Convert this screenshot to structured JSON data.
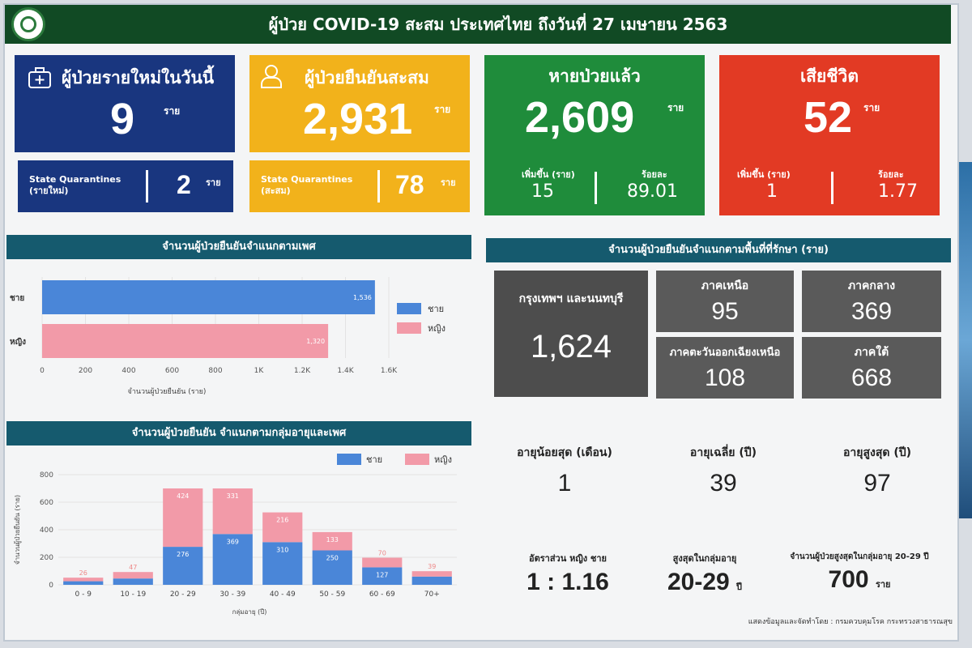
{
  "header": {
    "title": "ผู้ป่วย COVID-19 สะสม  ประเทศไทย ถึงวันที่ 27 เมษายน 2563"
  },
  "cards": {
    "new_cases": {
      "label": "ผู้ป่วยรายใหม่ในวันนี้",
      "value": "9",
      "unit": "ราย",
      "color": "#19367f",
      "sub": {
        "label_line1": "State Quarantines",
        "label_line2": "(รายใหม่)",
        "value": "2",
        "unit": "ราย"
      }
    },
    "confirmed": {
      "label": "ผู้ป่วยยืนยันสะสม",
      "value": "2,931",
      "unit": "ราย",
      "color": "#f2b21b",
      "sub": {
        "label_line1": "State Quarantines",
        "label_line2": "(สะสม)",
        "value": "78",
        "unit": "ราย"
      }
    },
    "recovered": {
      "label": "หายป่วยแล้ว",
      "value": "2,609",
      "unit": "ราย",
      "color": "#1f8c3b",
      "inc_label": "เพิ่มขึ้น (ราย)",
      "inc_value": "15",
      "pct_label": "ร้อยละ",
      "pct_value": "89.01"
    },
    "deaths": {
      "label": "เสียชีวิต",
      "value": "52",
      "unit": "ราย",
      "color": "#e23a24",
      "inc_label": "เพิ่มขึ้น (ราย)",
      "inc_value": "1",
      "pct_label": "ร้อยละ",
      "pct_value": "1.77"
    }
  },
  "gender_section": {
    "title": "จำนวนผู้ป่วยยืนยันจำแนกตามเพศ"
  },
  "age_section": {
    "title": "จำนวนผู้ป่วยยืนยัน จำแนกตามกลุ่มอายุและเพศ"
  },
  "region_section": {
    "title": "จำนวนผู้ป่วยยืนยันจำแนกตามพื้นที่ที่รักษา (ราย)"
  },
  "regions": {
    "bangkok": {
      "label": "กรุงเทพฯ และนนทบุรี",
      "value": "1,624"
    },
    "north": {
      "label": "ภาคเหนือ",
      "value": "95"
    },
    "central": {
      "label": "ภาคกลาง",
      "value": "369"
    },
    "northeast": {
      "label": "ภาคตะวันออกเฉียงเหนือ",
      "value": "108"
    },
    "south": {
      "label": "ภาคใต้",
      "value": "668"
    }
  },
  "age_stats": {
    "min": {
      "label": "อายุน้อยสุด (เดือน)",
      "value": "1"
    },
    "avg": {
      "label": "อายุเฉลี่ย (ปี)",
      "value": "39"
    },
    "max": {
      "label": "อายุสูงสุด (ปี)",
      "value": "97"
    }
  },
  "summary": {
    "ratio_label": "อัตราส่วน  หญิง  ชาย",
    "ratio_value": "1 : 1.16",
    "top_group_label": "สูงสุดในกลุ่มอายุ",
    "top_group_value": "20-29",
    "top_group_unit": "ปี",
    "top_count_label": "จำนวนผู้ป่วยสูงสุดในกลุ่มอายุ 20-29 ปี",
    "top_count_value": "700",
    "top_count_unit": "ราย"
  },
  "footer": {
    "source": "แสดงข้อมูลและจัดทำโดย : กรมควบคุมโรค กระทรวงสาธารณสุข"
  },
  "chart_data": [
    {
      "type": "bar",
      "orientation": "horizontal",
      "title": "จำนวนผู้ป่วยยืนยันจำแนกตามเพศ",
      "categories": [
        "ชาย",
        "หญิง"
      ],
      "values": [
        1536,
        1320
      ],
      "value_labels": [
        "1,536",
        "1,320"
      ],
      "colors": [
        "#4a86d8",
        "#f29aa8"
      ],
      "legend": [
        "ชาย",
        "หญิง"
      ],
      "legend_position": "right",
      "xlabel": "จำนวนผู้ป่วยยืนยัน (ราย)",
      "xlim": [
        0,
        1600
      ],
      "xticks": [
        "0",
        "200",
        "400",
        "600",
        "800",
        "1K",
        "1.2K",
        "1.4K",
        "1.6K"
      ]
    },
    {
      "type": "bar",
      "stacked": true,
      "title": "จำนวนผู้ป่วยยืนยัน จำแนกตามกลุ่มอายุและเพศ",
      "categories": [
        "0 - 9",
        "10 - 19",
        "20 - 29",
        "30 - 39",
        "40 - 49",
        "50 - 59",
        "60 - 69",
        "70+"
      ],
      "series": [
        {
          "name": "ชาย",
          "color": "#4a86d8",
          "values": [
            26,
            46,
            276,
            369,
            310,
            250,
            127,
            60
          ]
        },
        {
          "name": "หญิง",
          "color": "#f29aa8",
          "values": [
            26,
            47,
            424,
            331,
            216,
            133,
            70,
            39
          ]
        }
      ],
      "labels": {
        "ชาย": [
          "",
          "",
          "276",
          "369",
          "310",
          "250",
          "127",
          ""
        ],
        "หญิง": [
          "26",
          "47",
          "424",
          "331",
          "216",
          "133",
          "70",
          "39"
        ]
      },
      "legend_position": "top-right",
      "xlabel": "กลุ่มอายุ (ปี)",
      "ylabel": "จำนวนผู้ป่วยยืนยัน (ราย)",
      "ylim": [
        0,
        800
      ],
      "yticks": [
        "0",
        "200",
        "400",
        "600",
        "800"
      ]
    }
  ]
}
